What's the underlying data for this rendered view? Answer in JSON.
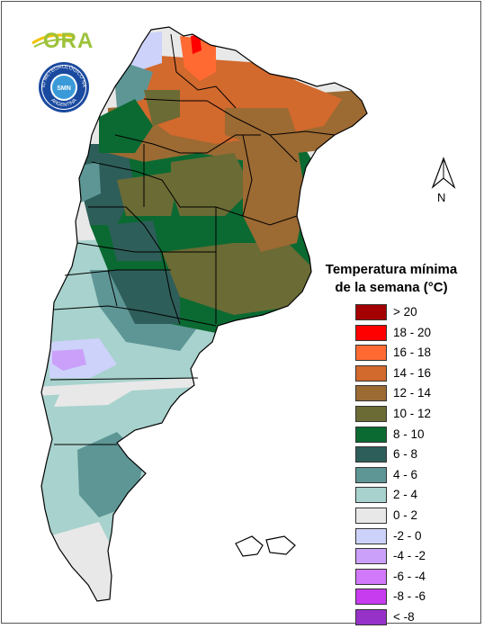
{
  "logos": {
    "ora_text": "ORA",
    "smn_ring_text": "SERVICIO METEOROLÓGICO NACIONAL",
    "smn_bottom_text": "ARGENTINA",
    "smn_center_text": "SMN"
  },
  "north_arrow": {
    "letter": "N"
  },
  "legend": {
    "title_line1": "Temperatura mínima",
    "title_line2": "de la semana (°C)",
    "items": [
      {
        "label": "> 20",
        "color": "#a50000"
      },
      {
        "label": "18 - 20",
        "color": "#ff0000"
      },
      {
        "label": "16 - 18",
        "color": "#ff6a33"
      },
      {
        "label": "14 - 16",
        "color": "#d2692d"
      },
      {
        "label": "12 - 14",
        "color": "#9c6a33"
      },
      {
        "label": "10 - 12",
        "color": "#6b6b35"
      },
      {
        "label": "8 - 10",
        "color": "#0a6a32"
      },
      {
        "label": "6 - 8",
        "color": "#2e5e5a"
      },
      {
        "label": "4 - 6",
        "color": "#5e9696"
      },
      {
        "label": "2 - 4",
        "color": "#a8d2cd"
      },
      {
        "label": "0 - 2",
        "color": "#e8e8e8"
      },
      {
        "label": "-2 - 0",
        "color": "#cdd2fa"
      },
      {
        "label": "-4 - -2",
        "color": "#caa0fa"
      },
      {
        "label": "-6 - -4",
        "color": "#d278fa"
      },
      {
        "label": "-8 - -6",
        "color": "#c83cf0"
      },
      {
        "label": "< -8",
        "color": "#9632c8"
      }
    ]
  }
}
